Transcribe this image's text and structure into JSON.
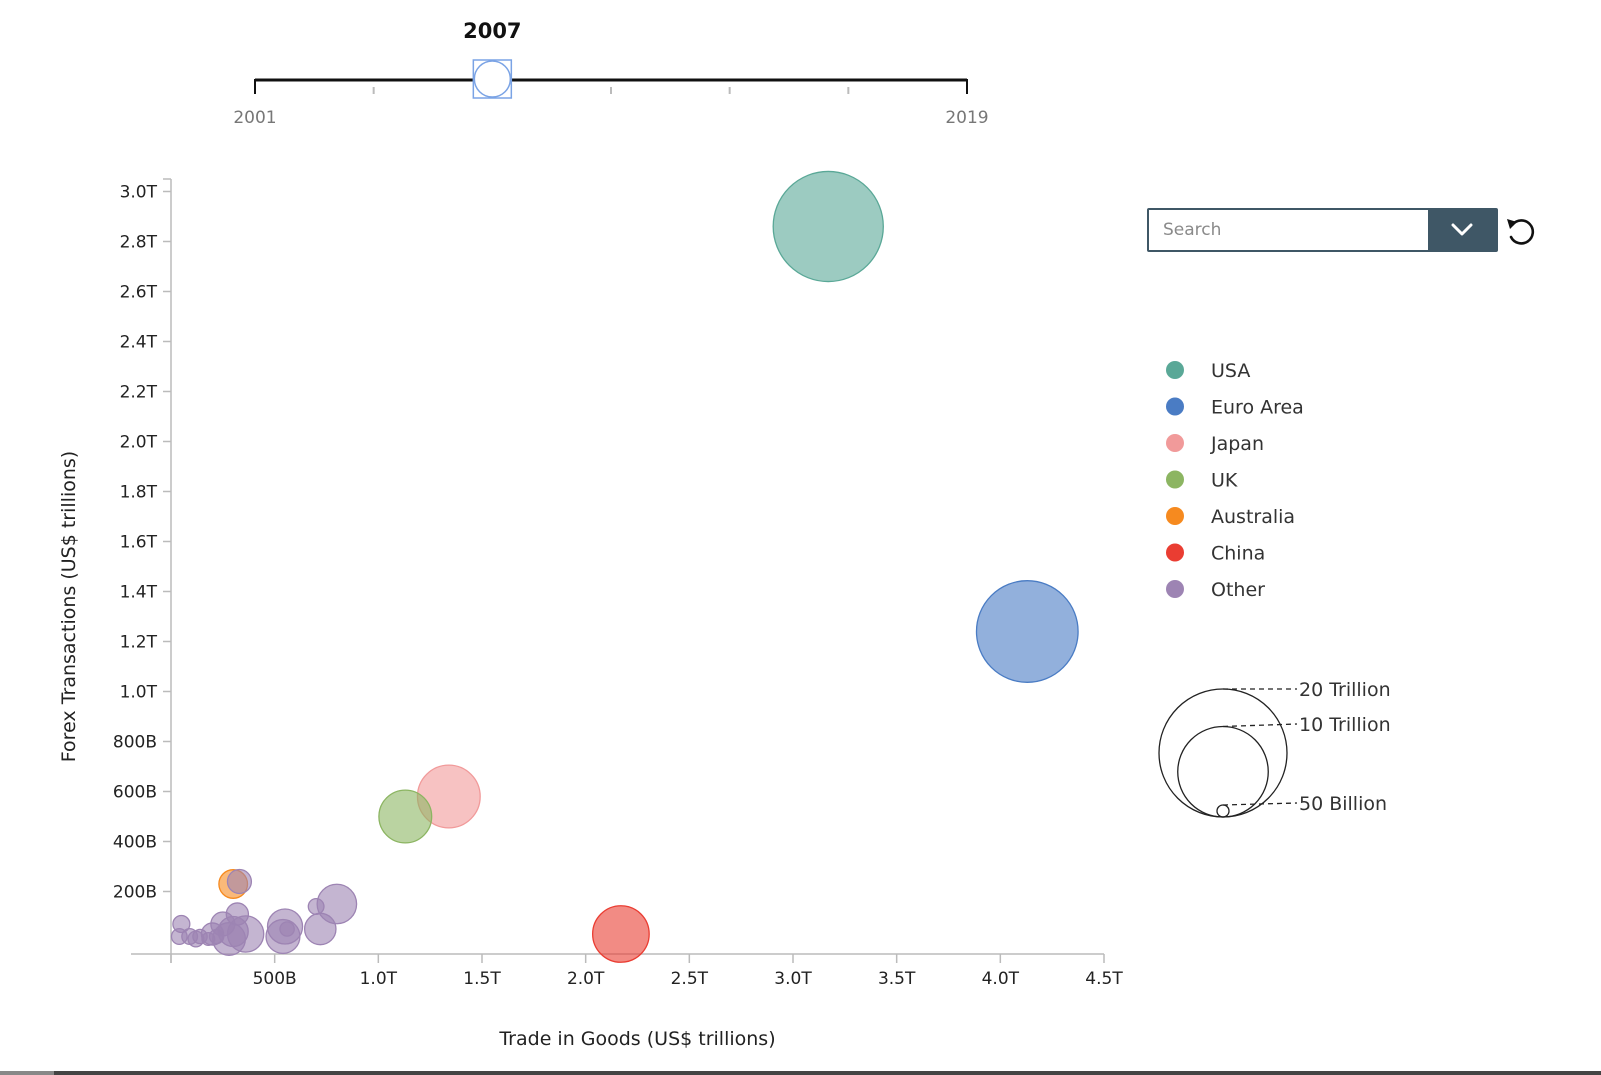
{
  "timeline": {
    "current_year": "2007",
    "start_label": "2001",
    "end_label": "2019",
    "min": 2001,
    "max": 2019,
    "value": 2007,
    "minor_ticks": [
      2004,
      2010,
      2013,
      2016
    ]
  },
  "search": {
    "placeholder": "Search",
    "dropdown_icon": "chevron-down-icon",
    "reset_icon": "reset-icon"
  },
  "colors": {
    "USA": "#5aa897",
    "Euro Area": "#4a7cc4",
    "Japan": "#f19a9a",
    "UK": "#8cb562",
    "Australia": "#f68a1f",
    "China": "#ea3d32",
    "Other": "#9d84b3"
  },
  "size_legend": {
    "max_value": 20,
    "entries": [
      {
        "label": "20 Trillion",
        "value": 20
      },
      {
        "label": "10 Trillion",
        "value": 10
      },
      {
        "label": "50 Billion",
        "value": 0.05
      }
    ]
  },
  "chart_data": {
    "type": "scatter",
    "xlabel": "Trade in Goods (US$ trillions)",
    "ylabel": "Forex Transactions (US$ trillions)",
    "xlim": [
      0,
      4.5
    ],
    "ylim": [
      -0.05,
      3.05
    ],
    "x_ticks": [
      {
        "value": 0.5,
        "label": "500B"
      },
      {
        "value": 1.0,
        "label": "1.0T"
      },
      {
        "value": 1.5,
        "label": "1.5T"
      },
      {
        "value": 2.0,
        "label": "2.0T"
      },
      {
        "value": 2.5,
        "label": "2.5T"
      },
      {
        "value": 3.0,
        "label": "3.0T"
      },
      {
        "value": 3.5,
        "label": "3.5T"
      },
      {
        "value": 4.0,
        "label": "4.0T"
      },
      {
        "value": 4.5,
        "label": "4.5T"
      }
    ],
    "y_ticks": [
      {
        "value": 0.2,
        "label": "200B"
      },
      {
        "value": 0.4,
        "label": "400B"
      },
      {
        "value": 0.6,
        "label": "600B"
      },
      {
        "value": 0.8,
        "label": "800B"
      },
      {
        "value": 1.0,
        "label": "1.0T"
      },
      {
        "value": 1.2,
        "label": "1.2T"
      },
      {
        "value": 1.4,
        "label": "1.4T"
      },
      {
        "value": 1.6,
        "label": "1.6T"
      },
      {
        "value": 1.8,
        "label": "1.8T"
      },
      {
        "value": 2.0,
        "label": "2.0T"
      },
      {
        "value": 2.2,
        "label": "2.2T"
      },
      {
        "value": 2.4,
        "label": "2.4T"
      },
      {
        "value": 2.6,
        "label": "2.6T"
      },
      {
        "value": 2.8,
        "label": "2.8T"
      },
      {
        "value": 3.0,
        "label": "3.0T"
      }
    ],
    "legend": [
      "USA",
      "Euro Area",
      "Japan",
      "UK",
      "Australia",
      "China",
      "Other"
    ],
    "legend_position": "right",
    "grid": false,
    "points": [
      {
        "group": "USA",
        "x": 3.17,
        "y": 2.86,
        "size": 14.8
      },
      {
        "group": "Euro Area",
        "x": 4.13,
        "y": 1.24,
        "size": 12.6
      },
      {
        "group": "Japan",
        "x": 1.34,
        "y": 0.58,
        "size": 4.8
      },
      {
        "group": "UK",
        "x": 1.13,
        "y": 0.5,
        "size": 3.4
      },
      {
        "group": "Australia",
        "x": 0.3,
        "y": 0.23,
        "size": 1.0
      },
      {
        "group": "China",
        "x": 2.17,
        "y": 0.03,
        "size": 3.9
      },
      {
        "group": "Other",
        "x": 0.8,
        "y": 0.15,
        "size": 1.9
      },
      {
        "group": "Other",
        "x": 0.33,
        "y": 0.24,
        "size": 0.7
      },
      {
        "group": "Other",
        "x": 0.72,
        "y": 0.05,
        "size": 1.2
      },
      {
        "group": "Other",
        "x": 0.55,
        "y": 0.06,
        "size": 1.5
      },
      {
        "group": "Other",
        "x": 0.54,
        "y": 0.02,
        "size": 1.4
      },
      {
        "group": "Other",
        "x": 0.36,
        "y": 0.03,
        "size": 1.6
      },
      {
        "group": "Other",
        "x": 0.28,
        "y": 0.01,
        "size": 1.3
      },
      {
        "group": "Other",
        "x": 0.3,
        "y": 0.04,
        "size": 1.1
      },
      {
        "group": "Other",
        "x": 0.25,
        "y": 0.07,
        "size": 0.7
      },
      {
        "group": "Other",
        "x": 0.32,
        "y": 0.11,
        "size": 0.6
      },
      {
        "group": "Other",
        "x": 0.2,
        "y": 0.03,
        "size": 0.6
      },
      {
        "group": "Other",
        "x": 0.7,
        "y": 0.14,
        "size": 0.3
      },
      {
        "group": "Other",
        "x": 0.56,
        "y": 0.05,
        "size": 0.25
      },
      {
        "group": "Other",
        "x": 0.05,
        "y": 0.07,
        "size": 0.35
      },
      {
        "group": "Other",
        "x": 0.09,
        "y": 0.02,
        "size": 0.3
      },
      {
        "group": "Other",
        "x": 0.04,
        "y": 0.02,
        "size": 0.3
      },
      {
        "group": "Other",
        "x": 0.12,
        "y": 0.01,
        "size": 0.3
      },
      {
        "group": "Other",
        "x": 0.14,
        "y": 0.02,
        "size": 0.25
      },
      {
        "group": "Other",
        "x": 0.18,
        "y": 0.01,
        "size": 0.2
      },
      {
        "group": "Other",
        "x": 0.22,
        "y": 0.02,
        "size": 0.25
      }
    ]
  }
}
